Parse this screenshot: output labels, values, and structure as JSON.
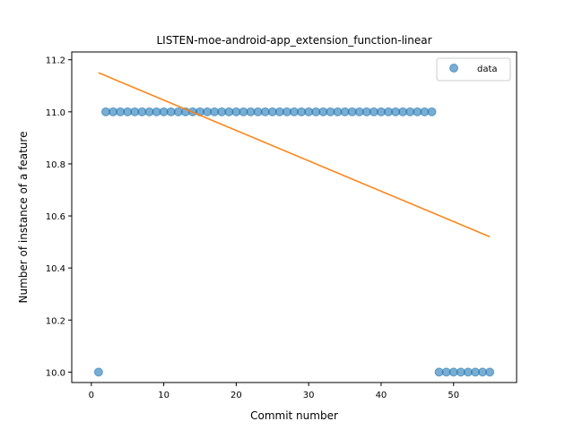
{
  "chart_data": {
    "type": "scatter",
    "title": "LISTEN-moe-android-app_extension_function-linear",
    "xlabel": "Commit number",
    "ylabel": "Number of instance of a feature",
    "xlim": [
      -2.7,
      58.7
    ],
    "ylim": [
      9.96,
      11.23
    ],
    "xticks": [
      0,
      10,
      20,
      30,
      40,
      50
    ],
    "yticks": [
      10.0,
      10.2,
      10.4,
      10.6,
      10.8,
      11.0,
      11.2
    ],
    "xtick_labels": [
      "0",
      "10",
      "20",
      "30",
      "40",
      "50"
    ],
    "ytick_labels": [
      "10.0",
      "10.2",
      "10.4",
      "10.6",
      "10.8",
      "11.0",
      "11.2"
    ],
    "grid": false,
    "legend_position": "top-right",
    "series": [
      {
        "name": "data",
        "type": "scatter",
        "color": "#1f77b4",
        "points": [
          [
            1,
            10.0
          ],
          [
            2,
            11.0
          ],
          [
            3,
            11.0
          ],
          [
            4,
            11.0
          ],
          [
            5,
            11.0
          ],
          [
            6,
            11.0
          ],
          [
            7,
            11.0
          ],
          [
            8,
            11.0
          ],
          [
            9,
            11.0
          ],
          [
            10,
            11.0
          ],
          [
            11,
            11.0
          ],
          [
            12,
            11.0
          ],
          [
            13,
            11.0
          ],
          [
            14,
            11.0
          ],
          [
            15,
            11.0
          ],
          [
            16,
            11.0
          ],
          [
            17,
            11.0
          ],
          [
            18,
            11.0
          ],
          [
            19,
            11.0
          ],
          [
            20,
            11.0
          ],
          [
            21,
            11.0
          ],
          [
            22,
            11.0
          ],
          [
            23,
            11.0
          ],
          [
            24,
            11.0
          ],
          [
            25,
            11.0
          ],
          [
            26,
            11.0
          ],
          [
            27,
            11.0
          ],
          [
            28,
            11.0
          ],
          [
            29,
            11.0
          ],
          [
            30,
            11.0
          ],
          [
            31,
            11.0
          ],
          [
            32,
            11.0
          ],
          [
            33,
            11.0
          ],
          [
            34,
            11.0
          ],
          [
            35,
            11.0
          ],
          [
            36,
            11.0
          ],
          [
            37,
            11.0
          ],
          [
            38,
            11.0
          ],
          [
            39,
            11.0
          ],
          [
            40,
            11.0
          ],
          [
            41,
            11.0
          ],
          [
            42,
            11.0
          ],
          [
            43,
            11.0
          ],
          [
            44,
            11.0
          ],
          [
            45,
            11.0
          ],
          [
            46,
            11.0
          ],
          [
            47,
            11.0
          ],
          [
            48,
            10.0
          ],
          [
            49,
            10.0
          ],
          [
            50,
            10.0
          ],
          [
            51,
            10.0
          ],
          [
            52,
            10.0
          ],
          [
            53,
            10.0
          ],
          [
            54,
            10.0
          ],
          [
            55,
            10.0
          ]
        ]
      },
      {
        "type": "line",
        "color": "#ff7f0e",
        "points": [
          [
            1,
            11.15
          ],
          [
            55,
            10.52
          ]
        ]
      }
    ]
  }
}
